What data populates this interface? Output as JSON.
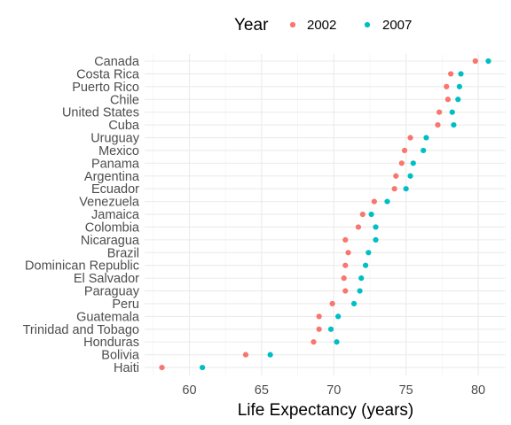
{
  "chart_data": {
    "type": "scatter",
    "xlabel": "Life Expectancy (years)",
    "ylabel": "",
    "xlim": [
      56.9,
      81.9
    ],
    "x_ticks": [
      60,
      65,
      70,
      75,
      80
    ],
    "grid": true,
    "legend": {
      "title": "Year",
      "placement": "top",
      "entries": [
        {
          "name": "2002",
          "color": "#F8766D"
        },
        {
          "name": "2007",
          "color": "#00BFC4"
        }
      ]
    },
    "categories": [
      "Canada",
      "Costa Rica",
      "Puerto Rico",
      "Chile",
      "United States",
      "Cuba",
      "Uruguay",
      "Mexico",
      "Panama",
      "Argentina",
      "Ecuador",
      "Venezuela",
      "Jamaica",
      "Colombia",
      "Nicaragua",
      "Brazil",
      "Dominican Republic",
      "El Salvador",
      "Paraguay",
      "Peru",
      "Guatemala",
      "Trinidad and Tobago",
      "Honduras",
      "Bolivia",
      "Haiti"
    ],
    "series": [
      {
        "name": "2002",
        "color": "#F8766D",
        "values": [
          79.8,
          78.1,
          77.8,
          77.9,
          77.3,
          77.2,
          75.3,
          74.9,
          74.7,
          74.3,
          74.2,
          72.8,
          72.0,
          71.7,
          70.8,
          71.0,
          70.8,
          70.7,
          70.8,
          69.9,
          68.98,
          68.98,
          68.6,
          63.9,
          58.1
        ]
      },
      {
        "name": "2007",
        "color": "#00BFC4",
        "values": [
          80.7,
          78.8,
          78.7,
          78.6,
          78.2,
          78.3,
          76.4,
          76.2,
          75.5,
          75.3,
          75.0,
          73.7,
          72.6,
          72.9,
          72.9,
          72.4,
          72.2,
          71.9,
          71.8,
          71.4,
          70.3,
          69.8,
          70.2,
          65.6,
          60.9
        ]
      }
    ]
  }
}
